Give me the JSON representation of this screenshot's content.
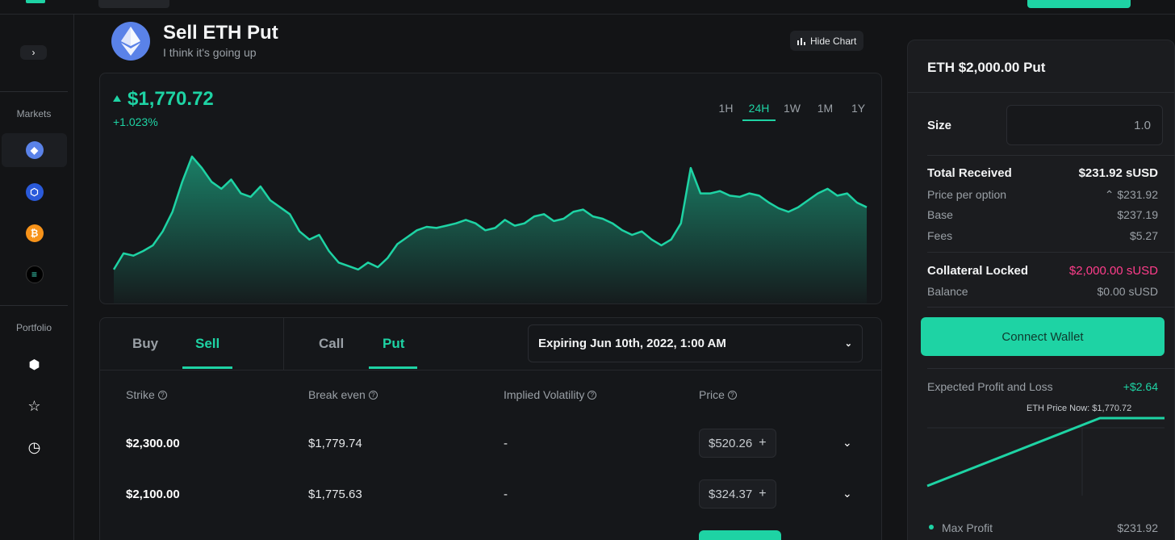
{
  "sidebar": {
    "collapse_glyph": "›",
    "markets_label": "Markets",
    "portfolio_label": "Portfolio",
    "markets": [
      {
        "icon": "ethereum-icon",
        "glyph": "◆",
        "color": "#5a82e8"
      },
      {
        "icon": "chainlink-icon",
        "glyph": "⬡",
        "color": "#2a5ada"
      },
      {
        "icon": "bitcoin-icon",
        "glyph": "₿",
        "color": "#f7931a"
      },
      {
        "icon": "solana-icon",
        "glyph": "≡",
        "color": "#000000"
      }
    ],
    "portfolio": [
      {
        "icon": "cube-icon",
        "glyph": "⬢"
      },
      {
        "icon": "star-icon",
        "glyph": "☆"
      },
      {
        "icon": "clock-icon",
        "glyph": "◷"
      }
    ]
  },
  "header": {
    "title": "Sell ETH Put",
    "subtitle": "I think it's going up",
    "hide_chart_label": "Hide Chart"
  },
  "chart": {
    "price": "$1,770.72",
    "change": "+1.023%",
    "ranges": [
      "1H",
      "24H",
      "1W",
      "1M",
      "1Y"
    ],
    "active_range": "24H",
    "line_color": "#1ed3a4"
  },
  "chart_data": {
    "type": "area",
    "title": "",
    "xlabel": "",
    "ylabel": "",
    "ylim": [
      1700,
      1840
    ],
    "series": [
      {
        "values": [
          1712,
          1726,
          1724,
          1728,
          1733,
          1745,
          1762,
          1788,
          1810,
          1800,
          1788,
          1782,
          1790,
          1778,
          1775,
          1784,
          1772,
          1766,
          1760,
          1745,
          1738,
          1742,
          1728,
          1718,
          1715,
          1712,
          1718,
          1714,
          1722,
          1734,
          1740,
          1746,
          1749,
          1748,
          1750,
          1752,
          1755,
          1752,
          1746,
          1748,
          1755,
          1750,
          1752,
          1758,
          1760,
          1754,
          1756,
          1762,
          1764,
          1758,
          1756,
          1752,
          1746,
          1742,
          1745,
          1738,
          1733,
          1738,
          1752,
          1800,
          1778,
          1778,
          1780,
          1776,
          1775,
          1778,
          1776,
          1770,
          1765,
          1762,
          1766,
          1772,
          1778,
          1782,
          1776,
          1778,
          1770,
          1766
        ]
      }
    ]
  },
  "options": {
    "side_tabs": [
      "Buy",
      "Sell"
    ],
    "active_side": "Sell",
    "type_tabs": [
      "Call",
      "Put"
    ],
    "active_type": "Put",
    "expiry": "Expiring Jun 10th, 2022, 1:00 AM",
    "columns": [
      "Strike",
      "Break even",
      "Implied Volatility",
      "Price"
    ],
    "rows": [
      {
        "strike": "$2,300.00",
        "break_even": "$1,779.74",
        "iv": "-",
        "price": "$520.26"
      },
      {
        "strike": "$2,100.00",
        "break_even": "$1,775.63",
        "iv": "-",
        "price": "$324.37"
      }
    ]
  },
  "order": {
    "title": "ETH $2,000.00 Put",
    "size_label": "Size",
    "size_value": "1.0",
    "total_received_label": "Total Received",
    "total_received_value": "$231.92 sUSD",
    "price_per_option_label": "Price per option",
    "price_per_option_value": "⌃ $231.92",
    "base_label": "Base",
    "base_value": "$237.19",
    "fees_label": "Fees",
    "fees_value": "$5.27",
    "collateral_label": "Collateral Locked",
    "collateral_value": "$2,000.00 sUSD",
    "balance_label": "Balance",
    "balance_value": "$0.00 sUSD",
    "connect_label": "Connect Wallet",
    "pnl_label": "Expected Profit and Loss",
    "pnl_value": "+$2.64",
    "eth_now_label": "ETH Price Now: $1,770.72",
    "max_profit_label": "Max Profit",
    "max_profit_value": "$231.92"
  }
}
